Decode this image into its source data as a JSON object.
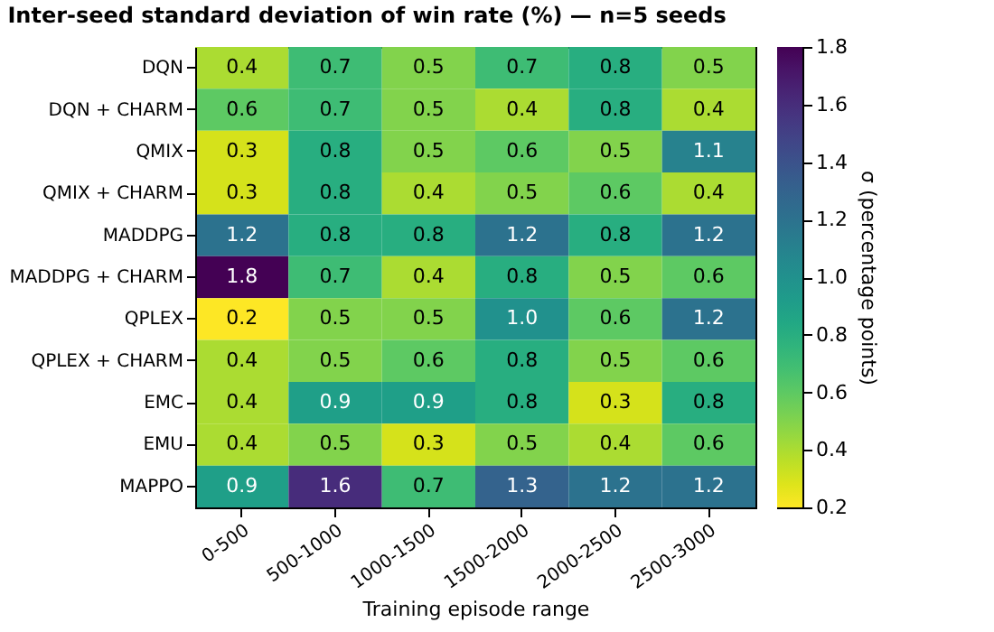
{
  "chart_data": {
    "type": "heatmap",
    "title": "Inter-seed standard deviation of win rate (%) — n=5 seeds",
    "xlabel": "Training episode range",
    "clabel": "σ (percentage points)",
    "categories": [
      "0-500",
      "500-1000",
      "1000-1500",
      "1500-2000",
      "2000-2500",
      "2500-3000"
    ],
    "y_categories": [
      "DQN",
      "DQN + CHARM",
      "QMIX",
      "QMIX + CHARM",
      "MADDPG",
      "MADDPG + CHARM",
      "QPLEX",
      "QPLEX + CHARM",
      "EMC",
      "EMU",
      "MAPPO"
    ],
    "cells": [
      [
        0.4,
        0.7,
        0.5,
        0.7,
        0.8,
        0.5
      ],
      [
        0.6,
        0.7,
        0.5,
        0.4,
        0.8,
        0.4
      ],
      [
        0.3,
        0.8,
        0.5,
        0.6,
        0.5,
        1.1
      ],
      [
        0.3,
        0.8,
        0.4,
        0.5,
        0.6,
        0.4
      ],
      [
        1.2,
        0.8,
        0.8,
        1.2,
        0.8,
        1.2
      ],
      [
        1.8,
        0.7,
        0.4,
        0.8,
        0.5,
        0.6
      ],
      [
        0.2,
        0.5,
        0.5,
        1.0,
        0.6,
        1.2
      ],
      [
        0.4,
        0.5,
        0.6,
        0.8,
        0.5,
        0.6
      ],
      [
        0.4,
        0.9,
        0.9,
        0.8,
        0.3,
        0.8
      ],
      [
        0.4,
        0.5,
        0.3,
        0.5,
        0.4,
        0.6
      ],
      [
        0.9,
        1.6,
        0.7,
        1.3,
        1.2,
        1.2
      ]
    ],
    "cell_labels": [
      [
        "0.4",
        "0.7",
        "0.5",
        "0.7",
        "0.8",
        "0.5"
      ],
      [
        "0.6",
        "0.7",
        "0.5",
        "0.4",
        "0.8",
        "0.4"
      ],
      [
        "0.3",
        "0.8",
        "0.5",
        "0.6",
        "0.5",
        "1.1"
      ],
      [
        "0.3",
        "0.8",
        "0.4",
        "0.5",
        "0.6",
        "0.4"
      ],
      [
        "1.2",
        "0.8",
        "0.8",
        "1.2",
        "0.8",
        "1.2"
      ],
      [
        "1.8",
        "0.7",
        "0.4",
        "0.8",
        "0.5",
        "0.6"
      ],
      [
        "0.2",
        "0.5",
        "0.5",
        "1.0",
        "0.6",
        "1.2"
      ],
      [
        "0.4",
        "0.5",
        "0.6",
        "0.8",
        "0.5",
        "0.6"
      ],
      [
        "0.4",
        "0.9",
        "0.9",
        "0.8",
        "0.3",
        "0.8"
      ],
      [
        "0.4",
        "0.5",
        "0.3",
        "0.5",
        "0.4",
        "0.6"
      ],
      [
        "0.9",
        "1.6",
        "0.7",
        "1.3",
        "1.2",
        "1.2"
      ]
    ],
    "clim": [
      0.2,
      1.8
    ],
    "cticks": [
      0.2,
      0.4,
      0.6,
      0.8,
      {
        "value": 1.0,
        "label": "1.0"
      },
      1.2,
      1.4,
      1.6,
      1.8
    ],
    "data_labels": true
  }
}
